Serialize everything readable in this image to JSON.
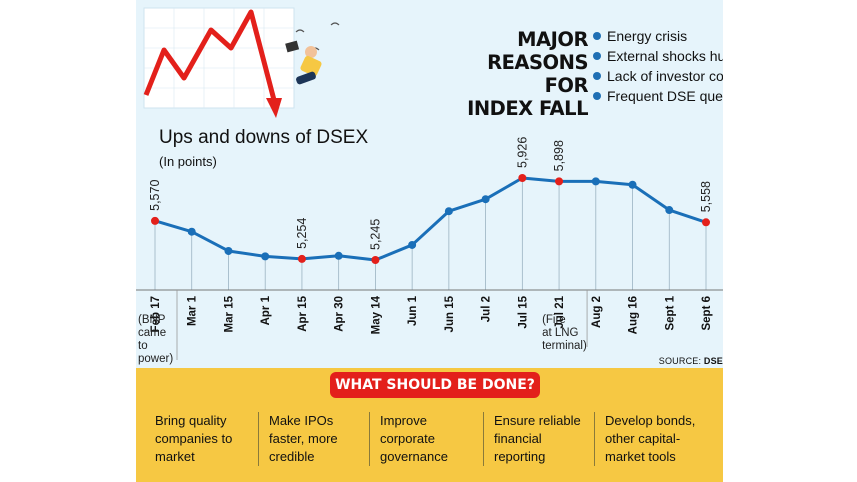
{
  "header": {
    "headline_lines": [
      "MAJOR",
      "REASONS FOR",
      "INDEX FALL"
    ],
    "reasons": [
      "Energy crisis",
      "External shocks hurting businesses",
      "Lack of investor confidence",
      "Frequent DSE queries on large trades"
    ]
  },
  "source_label": "SOURCE:",
  "source_name": "DSE",
  "colors": {
    "panel_bg": "#e6f4fb",
    "line": "#1a6fb8",
    "highlight_point": "#e3201b",
    "action_panel": "#f6c843",
    "action_title_bg": "#e3201b"
  },
  "chart_data": {
    "type": "line",
    "title": "Ups and downs of DSEX",
    "subtitle": "(In points)",
    "categories": [
      "Feb 17",
      "Mar 1",
      "Mar 15",
      "Apr 1",
      "Apr 15",
      "Apr 30",
      "May 14",
      "Jun 1",
      "Jun 15",
      "Jul 2",
      "Jul 15",
      "Jul 21",
      "Aug 2",
      "Aug 16",
      "Sept 1",
      "Sept 6"
    ],
    "category_notes": {
      "Feb 17": [
        "(BNP",
        "came",
        "to",
        "power)"
      ],
      "Jul 21": [
        "(Fire",
        "at LNG",
        "terminal)"
      ]
    },
    "values": [
      5570,
      5480,
      5320,
      5275,
      5254,
      5280,
      5245,
      5370,
      5650,
      5750,
      5926,
      5898,
      5898,
      5870,
      5660,
      5558
    ],
    "labeled_points": [
      {
        "category": "Feb 17",
        "label": "5,570"
      },
      {
        "category": "Apr 15",
        "label": "5,254"
      },
      {
        "category": "May 14",
        "label": "5,245"
      },
      {
        "category": "Jul 15",
        "label": "5,926"
      },
      {
        "category": "Jul 21",
        "label": "5,898"
      },
      {
        "category": "Sept 6",
        "label": "5,558"
      }
    ],
    "ylim": [
      4900,
      6050
    ],
    "grid": false
  },
  "actions": {
    "title": "WHAT SHOULD BE DONE?",
    "items": [
      [
        "Bring quality",
        "companies to",
        "market"
      ],
      [
        "Make IPOs",
        "faster, more",
        "credible"
      ],
      [
        "Improve",
        "corporate",
        "governance"
      ],
      [
        "Ensure reliable",
        "financial",
        "reporting"
      ],
      [
        "Develop bonds,",
        "other capital-",
        "market tools"
      ]
    ]
  }
}
